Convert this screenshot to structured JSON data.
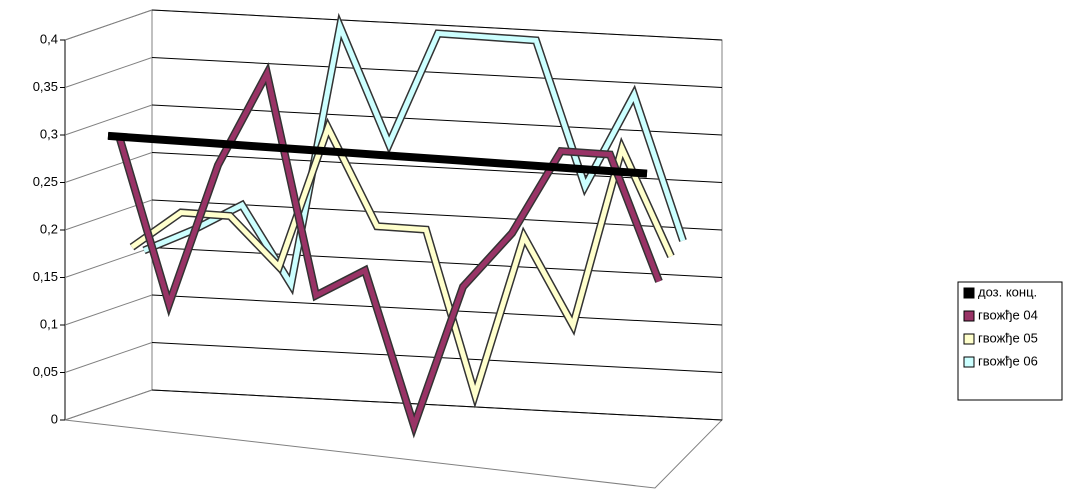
{
  "chart_data": {
    "type": "line3d",
    "categories": [
      null,
      null,
      null,
      null,
      null,
      null,
      null,
      null,
      null,
      null,
      null,
      null
    ],
    "ylim": [
      0,
      0.4
    ],
    "yticks": [
      0,
      {
        "value": 0.05,
        "label": "0,05"
      },
      {
        "value": 0.1,
        "label": "0,1"
      },
      {
        "value": 0.15,
        "label": "0,15"
      },
      {
        "value": 0.2,
        "label": "0,2"
      },
      {
        "value": 0.25,
        "label": "0,25"
      },
      {
        "value": 0.3,
        "label": "0,3"
      },
      {
        "value": 0.35,
        "label": "0,35"
      },
      {
        "value": 0.4,
        "label": "0,4"
      }
    ],
    "grid": true,
    "legend": "right",
    "series": [
      {
        "name": "доз. конц.",
        "color": "#000000",
        "values": [
          0.3,
          0.3,
          0.3,
          0.3,
          0.3,
          0.3,
          0.3,
          0.3,
          0.3,
          0.3,
          0.3,
          0.3
        ]
      },
      {
        "name": "гвожђе 04",
        "color": "#993366",
        "values": [
          0.29,
          0.12,
          0.27,
          0.37,
          0.14,
          0.17,
          0.01,
          0.16,
          0.22,
          0.31,
          0.31,
          0.18
        ]
      },
      {
        "name": "гвожђе 05",
        "color": "#ffffcc",
        "values": [
          0.17,
          0.21,
          0.21,
          0.16,
          0.31,
          0.21,
          0.21,
          0.04,
          0.21,
          0.12,
          0.31,
          0.2
        ]
      },
      {
        "name": "гвожђе 06",
        "color": "#ccffff",
        "values": [
          0.16,
          0.185,
          0.215,
          0.135,
          0.41,
          0.29,
          0.41,
          0.41,
          0.41,
          0.26,
          0.36,
          0.21
        ]
      }
    ]
  }
}
